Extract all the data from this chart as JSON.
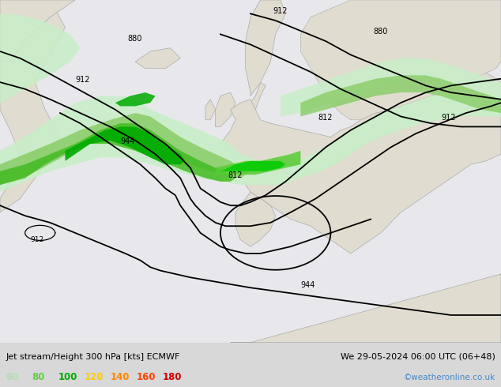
{
  "title_left": "Jet stream/Height 300 hPa [kts] ECMWF",
  "title_right": "We 29-05-2024 06:00 UTC (06+48)",
  "credit": "©weatheronline.co.uk",
  "legend_values": [
    "60",
    "80",
    "100",
    "120",
    "140",
    "160",
    "180"
  ],
  "legend_colors": [
    "#b2dfb2",
    "#66cc44",
    "#00aa00",
    "#ffcc00",
    "#ff8800",
    "#ff4400",
    "#cc0000"
  ],
  "figsize": [
    6.34,
    4.9
  ],
  "dpi": 100,
  "ocean_color": "#e8e8e8",
  "land_color": "#e8e8e8",
  "border_color": "#aaaaaa",
  "contour_color": "#000000",
  "text_color": "#000000",
  "credit_color": "#4488cc",
  "bottom_bg": "#d8d8d8",
  "jet_colors": [
    "#c8eec8",
    "#99dd88",
    "#55cc33",
    "#22aa00"
  ],
  "jet_alphas": [
    0.85,
    0.85,
    0.85,
    0.9
  ]
}
